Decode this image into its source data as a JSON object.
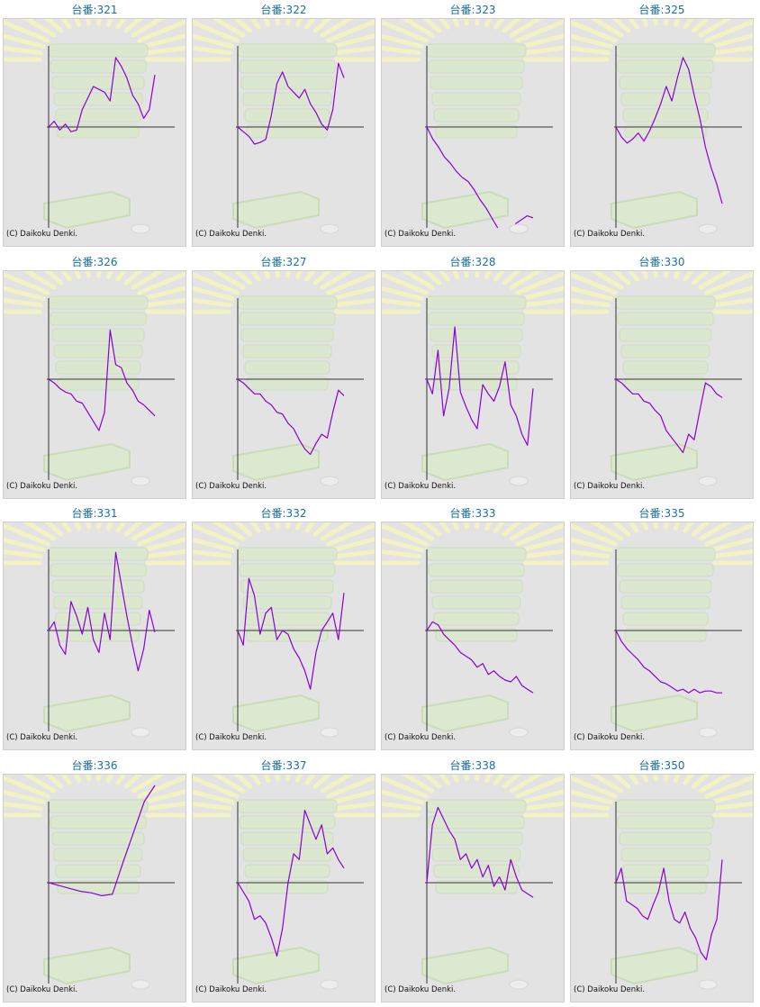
{
  "title_prefix": "台番:",
  "credit": "(C) Daikoku Denki.",
  "colors": {
    "line": "#8a00d8",
    "axis": "#333333",
    "title": "#1a6fa8",
    "background": "#e3e3e3"
  },
  "chart_data": [
    {
      "type": "line",
      "title": "台番:321",
      "y": [
        0,
        2,
        -2,
        1,
        -3,
        -2,
        6,
        10,
        14,
        13,
        12,
        9,
        24,
        21,
        17,
        11,
        8,
        3,
        6,
        18
      ],
      "ylim": [
        -65,
        28
      ]
    },
    {
      "type": "line",
      "title": "台番:322",
      "y": [
        0,
        -3,
        -6,
        -11,
        -10,
        -8,
        4,
        15,
        19,
        14,
        12,
        10,
        13,
        8,
        5,
        1,
        -2,
        6,
        22,
        17
      ],
      "ylim": [
        -65,
        28
      ]
    },
    {
      "type": "line",
      "title": "台番:323",
      "y": [
        0,
        -6,
        -10,
        -15,
        -18,
        -22,
        -25,
        -27,
        -31,
        -36,
        -40,
        -45,
        -50,
        null,
        null,
        -48,
        -46,
        -44,
        -45
      ],
      "ylim": [
        -50,
        28
      ]
    },
    {
      "type": "line",
      "title": "台番:325",
      "y": [
        0,
        -5,
        -8,
        -6,
        -3,
        -7,
        -2,
        3,
        8,
        14,
        9,
        17,
        24,
        20,
        11,
        3,
        -10,
        -20,
        -28,
        -38
      ],
      "ylim": [
        -50,
        28
      ]
    },
    {
      "type": "line",
      "title": "台番:326",
      "y": [
        0,
        -2,
        -5,
        -7,
        -8,
        -12,
        -13,
        -18,
        -23,
        -28,
        -18,
        17,
        5,
        4,
        -2,
        -6,
        -12,
        -14,
        -17,
        -20
      ],
      "ylim": [
        -55,
        28
      ]
    },
    {
      "type": "line",
      "title": "台番:327",
      "y": [
        0,
        -2,
        -5,
        -8,
        -8,
        -12,
        -14,
        -18,
        -19,
        -24,
        -27,
        -33,
        -38,
        -41,
        -35,
        -30,
        -32,
        -18,
        -6,
        -9
      ],
      "ylim": [
        -55,
        28
      ]
    },
    {
      "type": "line",
      "title": "台番:328",
      "y": [
        0,
        -8,
        10,
        -20,
        -5,
        18,
        -7,
        -15,
        -22,
        -27,
        -3,
        -8,
        -12,
        -4,
        6,
        -14,
        -20,
        -30,
        -36,
        -5
      ],
      "ylim": [
        -55,
        28
      ]
    },
    {
      "type": "line",
      "title": "台番:330",
      "y": [
        0,
        -2,
        -5,
        -8,
        -8,
        -12,
        -13,
        -17,
        -20,
        -28,
        -32,
        -36,
        -40,
        -30,
        -33,
        -17,
        -2,
        -4,
        -8,
        -10
      ],
      "ylim": [
        -55,
        28
      ]
    },
    {
      "type": "line",
      "title": "台番:331",
      "y": [
        0,
        3,
        -8,
        -13,
        10,
        5,
        -2,
        8,
        -5,
        -12,
        6,
        -5,
        27,
        16,
        5,
        -8,
        -22,
        -10,
        7,
        -1
      ],
      "ylim": [
        -55,
        28
      ]
    },
    {
      "type": "line",
      "title": "台番:332",
      "y": [
        0,
        -8,
        18,
        12,
        -2,
        6,
        8,
        -5,
        0,
        -2,
        -10,
        -15,
        -22,
        -32,
        -12,
        0,
        3,
        6,
        -5,
        13
      ],
      "ylim": [
        -55,
        28
      ]
    },
    {
      "type": "line",
      "title": "台番:333",
      "y": [
        0,
        3,
        2,
        -2,
        -5,
        -8,
        -12,
        -14,
        -16,
        -20,
        -18,
        -24,
        -22,
        -25,
        -27,
        -28,
        -25,
        -30,
        -32,
        -34
      ],
      "ylim": [
        -55,
        28
      ]
    },
    {
      "type": "line",
      "title": "台番:335",
      "y": [
        0,
        -6,
        -10,
        -13,
        -16,
        -20,
        -22,
        -25,
        -28,
        -29,
        -31,
        -33,
        -32,
        -34,
        -32,
        -34,
        -33,
        -33,
        -34,
        -34
      ],
      "ylim": [
        -55,
        28
      ]
    },
    {
      "type": "line",
      "title": "台番:336",
      "y": [
        0,
        -2,
        -4,
        -6,
        -7,
        -9,
        -8,
        10,
        25,
        40,
        48
      ],
      "ylim": [
        -70,
        40
      ]
    },
    {
      "type": "line",
      "title": "台番:337",
      "y": [
        0,
        -5,
        -10,
        -20,
        -18,
        -22,
        -30,
        -40,
        -25,
        0,
        10,
        8,
        25,
        20,
        15,
        20,
        10,
        12,
        8,
        5
      ],
      "ylim": [
        -55,
        28
      ]
    },
    {
      "type": "line",
      "title": "台番:338",
      "y": [
        0,
        20,
        26,
        22,
        18,
        15,
        8,
        10,
        5,
        8,
        2,
        6,
        -2,
        2,
        -4,
        8,
        2,
        -4,
        -6,
        -8
      ],
      "ylim": [
        -55,
        28
      ]
    },
    {
      "type": "line",
      "title": "台番:350",
      "y": [
        0,
        5,
        -10,
        -12,
        -14,
        -18,
        -20,
        -12,
        -5,
        5,
        -10,
        -20,
        -22,
        -16,
        -25,
        -30,
        -38,
        -42,
        -28,
        -20,
        8
      ],
      "ylim": [
        -55,
        28
      ]
    }
  ]
}
